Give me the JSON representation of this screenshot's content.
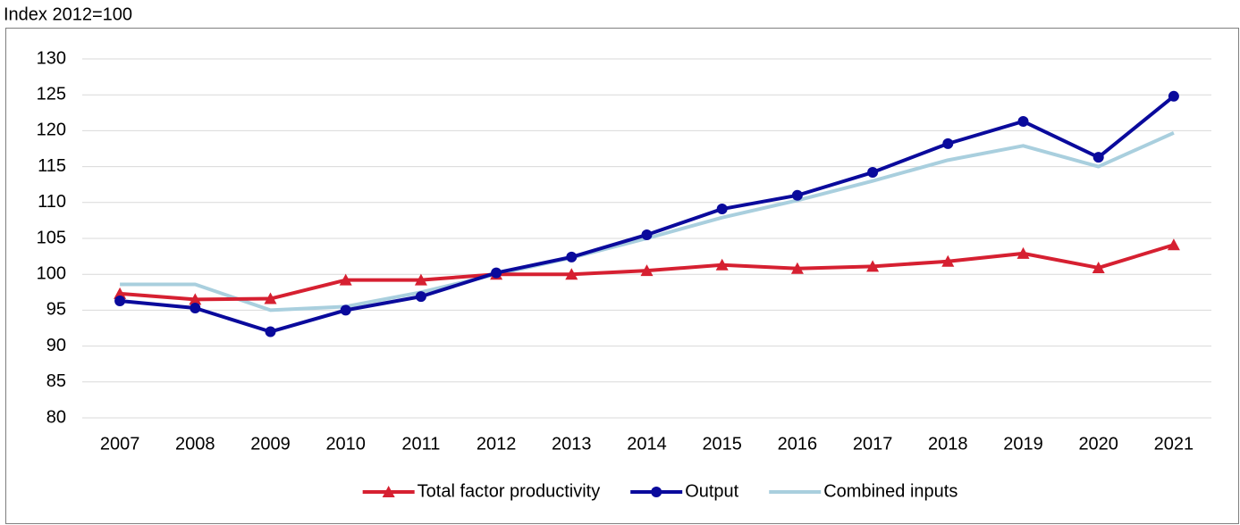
{
  "chart_data": {
    "type": "line",
    "y_label": "Index 2012=100",
    "categories": [
      "2007",
      "2008",
      "2009",
      "2010",
      "2011",
      "2012",
      "2013",
      "2014",
      "2015",
      "2016",
      "2017",
      "2018",
      "2019",
      "2020",
      "2021"
    ],
    "series": [
      {
        "name": "Total factor productivity",
        "color": "#d62031",
        "marker": "triangle",
        "values": [
          97.3,
          96.5,
          96.6,
          99.2,
          99.2,
          100,
          100,
          100.5,
          101.3,
          100.8,
          101.1,
          101.8,
          102.9,
          100.9,
          104.1
        ]
      },
      {
        "name": "Output",
        "color": "#0a0a9c",
        "marker": "circle",
        "values": [
          96.3,
          95.3,
          92.0,
          95.0,
          96.9,
          100.2,
          102.4,
          105.5,
          109.1,
          111.0,
          114.2,
          118.2,
          121.3,
          116.3,
          124.8
        ]
      },
      {
        "name": "Combined inputs",
        "color": "#a9cfde",
        "marker": "none",
        "values": [
          98.6,
          98.6,
          95.0,
          95.5,
          97.5,
          100,
          102.3,
          105.0,
          107.9,
          110.3,
          113.0,
          115.9,
          117.9,
          115.0,
          119.7
        ]
      }
    ],
    "ylim": [
      80,
      130
    ],
    "yticks": [
      80,
      85,
      90,
      95,
      100,
      105,
      110,
      115,
      120,
      125,
      130
    ],
    "grid": true,
    "legend": "bottom"
  }
}
